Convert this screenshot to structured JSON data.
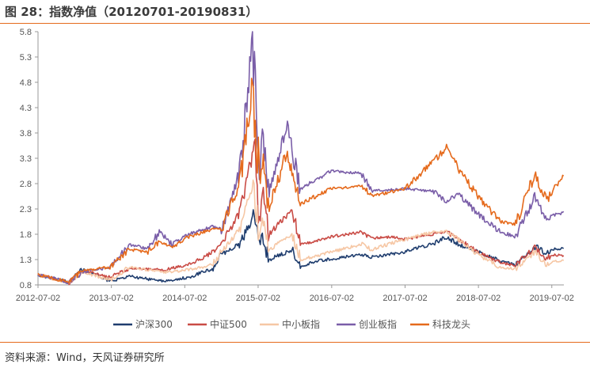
{
  "figure": {
    "title": "图 28：指数净值（20120701-20190831）",
    "source": "资料来源：Wind，天风证券研究所"
  },
  "colors": {
    "accent": "#e56a1c"
  },
  "chart_data": {
    "type": "line",
    "title": "",
    "xlabel": "",
    "ylabel": "",
    "x_ticks": [
      "2012-07-02",
      "2013-07-02",
      "2014-07-02",
      "2015-07-02",
      "2016-07-02",
      "2017-07-02",
      "2018-07-02",
      "2019-07-02"
    ],
    "y_ticks": [
      "0.8",
      "1.3",
      "1.8",
      "2.3",
      "2.8",
      "3.3",
      "3.8",
      "4.3",
      "4.8",
      "5.3",
      "5.8"
    ],
    "ylim": [
      0.8,
      5.8
    ],
    "xlim": [
      "2012-07-02",
      "2019-08-31"
    ],
    "grid": false,
    "legend_position": "bottom",
    "series": [
      {
        "name": "沪深300",
        "color": "#1f3d6e",
        "points": [
          [
            "2012-07-02",
            1.0
          ],
          [
            "2012-09-26",
            0.92
          ],
          [
            "2012-12-03",
            0.85
          ],
          [
            "2013-02-06",
            1.1
          ],
          [
            "2013-06-25",
            0.88
          ],
          [
            "2013-09-30",
            0.97
          ],
          [
            "2014-03-20",
            0.87
          ],
          [
            "2014-07-22",
            0.95
          ],
          [
            "2014-11-20",
            1.12
          ],
          [
            "2014-12-31",
            1.4
          ],
          [
            "2015-03-31",
            1.6
          ],
          [
            "2015-06-08",
            2.15
          ],
          [
            "2015-07-08",
            1.6
          ],
          [
            "2015-07-23",
            1.75
          ],
          [
            "2015-08-26",
            1.3
          ],
          [
            "2015-12-22",
            1.5
          ],
          [
            "2016-01-28",
            1.15
          ],
          [
            "2016-04-20",
            1.27
          ],
          [
            "2016-11-30",
            1.4
          ],
          [
            "2017-01-16",
            1.35
          ],
          [
            "2017-06-30",
            1.45
          ],
          [
            "2017-11-22",
            1.62
          ],
          [
            "2018-01-24",
            1.75
          ],
          [
            "2018-03-23",
            1.6
          ],
          [
            "2018-06-29",
            1.45
          ],
          [
            "2018-10-18",
            1.27
          ],
          [
            "2019-01-03",
            1.2
          ],
          [
            "2019-04-19",
            1.55
          ],
          [
            "2019-06-06",
            1.4
          ],
          [
            "2019-07-02",
            1.5
          ],
          [
            "2019-08-30",
            1.52
          ]
        ]
      },
      {
        "name": "中证500",
        "color": "#c94b45",
        "points": [
          [
            "2012-07-02",
            1.0
          ],
          [
            "2012-09-26",
            0.92
          ],
          [
            "2012-12-03",
            0.85
          ],
          [
            "2013-02-06",
            1.08
          ],
          [
            "2013-06-25",
            0.95
          ],
          [
            "2013-09-30",
            1.12
          ],
          [
            "2014-03-20",
            1.1
          ],
          [
            "2014-07-22",
            1.2
          ],
          [
            "2014-10-31",
            1.4
          ],
          [
            "2014-12-31",
            1.6
          ],
          [
            "2015-03-31",
            2.2
          ],
          [
            "2015-06-12",
            3.45
          ],
          [
            "2015-07-08",
            2.2
          ],
          [
            "2015-07-23",
            2.6
          ],
          [
            "2015-08-26",
            1.8
          ],
          [
            "2015-12-22",
            2.3
          ],
          [
            "2016-01-28",
            1.6
          ],
          [
            "2016-06-30",
            1.75
          ],
          [
            "2016-11-30",
            1.85
          ],
          [
            "2017-01-16",
            1.72
          ],
          [
            "2017-04-28",
            1.75
          ],
          [
            "2017-06-30",
            1.7
          ],
          [
            "2017-11-22",
            1.8
          ],
          [
            "2018-01-24",
            1.85
          ],
          [
            "2018-03-23",
            1.7
          ],
          [
            "2018-06-29",
            1.45
          ],
          [
            "2018-10-18",
            1.25
          ],
          [
            "2019-01-03",
            1.18
          ],
          [
            "2019-04-08",
            1.55
          ],
          [
            "2019-06-06",
            1.3
          ],
          [
            "2019-07-02",
            1.4
          ],
          [
            "2019-08-30",
            1.38
          ]
        ]
      },
      {
        "name": "中小板指",
        "color": "#f6c7a5",
        "points": [
          [
            "2012-07-02",
            1.0
          ],
          [
            "2012-09-26",
            0.9
          ],
          [
            "2012-12-03",
            0.85
          ],
          [
            "2013-02-06",
            1.05
          ],
          [
            "2013-06-25",
            0.9
          ],
          [
            "2013-09-30",
            1.15
          ],
          [
            "2014-03-20",
            1.05
          ],
          [
            "2014-07-22",
            1.1
          ],
          [
            "2014-11-20",
            1.2
          ],
          [
            "2014-12-31",
            1.45
          ],
          [
            "2015-03-31",
            1.9
          ],
          [
            "2015-06-12",
            2.8
          ],
          [
            "2015-07-08",
            1.8
          ],
          [
            "2015-07-23",
            2.1
          ],
          [
            "2015-08-26",
            1.5
          ],
          [
            "2015-12-22",
            1.8
          ],
          [
            "2016-01-28",
            1.3
          ],
          [
            "2016-06-30",
            1.45
          ],
          [
            "2016-11-30",
            1.6
          ],
          [
            "2017-01-16",
            1.5
          ],
          [
            "2017-06-30",
            1.7
          ],
          [
            "2017-11-22",
            1.85
          ],
          [
            "2018-01-24",
            1.85
          ],
          [
            "2018-03-23",
            1.7
          ],
          [
            "2018-06-29",
            1.4
          ],
          [
            "2018-10-18",
            1.15
          ],
          [
            "2019-01-03",
            1.12
          ],
          [
            "2019-04-08",
            1.45
          ],
          [
            "2019-06-06",
            1.2
          ],
          [
            "2019-07-02",
            1.25
          ],
          [
            "2019-08-30",
            1.28
          ]
        ]
      },
      {
        "name": "创业板指",
        "color": "#7a5ea8",
        "points": [
          [
            "2012-07-02",
            1.0
          ],
          [
            "2012-09-26",
            0.92
          ],
          [
            "2012-12-03",
            0.85
          ],
          [
            "2013-02-06",
            1.05
          ],
          [
            "2013-06-25",
            1.15
          ],
          [
            "2013-09-30",
            1.6
          ],
          [
            "2013-12-31",
            1.5
          ],
          [
            "2014-02-25",
            1.85
          ],
          [
            "2014-04-28",
            1.6
          ],
          [
            "2014-07-22",
            1.8
          ],
          [
            "2014-11-20",
            1.95
          ],
          [
            "2014-12-31",
            1.9
          ],
          [
            "2015-03-31",
            3.0
          ],
          [
            "2015-06-04",
            5.5
          ],
          [
            "2015-07-08",
            3.2
          ],
          [
            "2015-07-23",
            3.7
          ],
          [
            "2015-08-26",
            2.6
          ],
          [
            "2015-11-20",
            3.95
          ],
          [
            "2016-01-28",
            2.7
          ],
          [
            "2016-06-30",
            3.05
          ],
          [
            "2016-11-30",
            3.0
          ],
          [
            "2017-01-16",
            2.65
          ],
          [
            "2017-06-30",
            2.7
          ],
          [
            "2017-11-22",
            2.65
          ],
          [
            "2018-01-24",
            2.45
          ],
          [
            "2018-03-23",
            2.6
          ],
          [
            "2018-06-29",
            2.2
          ],
          [
            "2018-10-18",
            1.85
          ],
          [
            "2019-01-03",
            1.75
          ],
          [
            "2019-04-08",
            2.55
          ],
          [
            "2019-06-06",
            2.1
          ],
          [
            "2019-07-02",
            2.15
          ],
          [
            "2019-08-30",
            2.25
          ]
        ]
      },
      {
        "name": "科技龙头",
        "color": "#e56a1c",
        "points": [
          [
            "2012-07-02",
            1.0
          ],
          [
            "2012-09-26",
            0.92
          ],
          [
            "2012-12-03",
            0.86
          ],
          [
            "2013-02-06",
            1.08
          ],
          [
            "2013-06-25",
            1.15
          ],
          [
            "2013-09-30",
            1.5
          ],
          [
            "2013-12-31",
            1.45
          ],
          [
            "2014-02-25",
            1.65
          ],
          [
            "2014-04-28",
            1.55
          ],
          [
            "2014-07-22",
            1.75
          ],
          [
            "2014-11-20",
            1.9
          ],
          [
            "2014-12-31",
            1.9
          ],
          [
            "2015-03-31",
            2.8
          ],
          [
            "2015-06-04",
            4.8
          ],
          [
            "2015-07-08",
            2.9
          ],
          [
            "2015-07-23",
            3.3
          ],
          [
            "2015-08-26",
            2.3
          ],
          [
            "2015-11-20",
            3.4
          ],
          [
            "2016-01-28",
            2.4
          ],
          [
            "2016-06-30",
            2.7
          ],
          [
            "2016-11-30",
            2.75
          ],
          [
            "2017-01-16",
            2.55
          ],
          [
            "2017-06-30",
            2.7
          ],
          [
            "2017-11-22",
            3.25
          ],
          [
            "2018-01-24",
            3.5
          ],
          [
            "2018-03-23",
            3.1
          ],
          [
            "2018-06-29",
            2.55
          ],
          [
            "2018-10-18",
            2.05
          ],
          [
            "2019-01-03",
            2.0
          ],
          [
            "2019-04-08",
            3.0
          ],
          [
            "2019-06-06",
            2.45
          ],
          [
            "2019-07-02",
            2.65
          ],
          [
            "2019-08-30",
            2.95
          ]
        ]
      }
    ]
  }
}
